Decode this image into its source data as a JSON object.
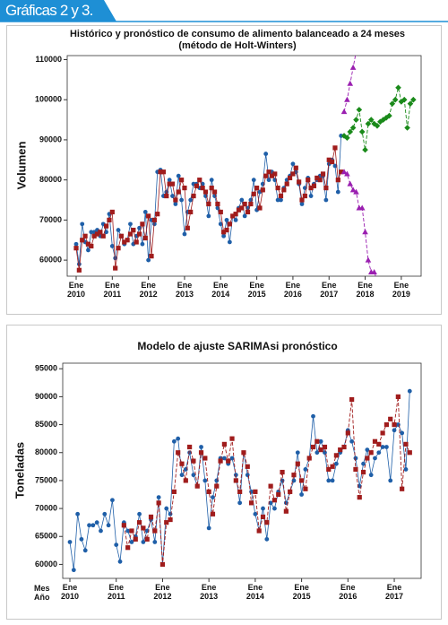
{
  "header": "Gráficas 2 y 3.",
  "chart_data": [
    {
      "type": "line",
      "title": "Histórico y pronóstico de consumo de alimento balanceado a 24 meses\n(método de Holt-Winters)",
      "ylabel": "Volumen",
      "categories": [
        "Ene\n2010",
        null,
        null,
        null,
        null,
        null,
        null,
        null,
        null,
        null,
        null,
        null,
        "Ene\n2011",
        null,
        null,
        null,
        null,
        null,
        null,
        null,
        null,
        null,
        null,
        null,
        "Ene\n2012",
        null,
        null,
        null,
        null,
        null,
        null,
        null,
        null,
        null,
        null,
        null,
        "Ene\n2013",
        null,
        null,
        null,
        null,
        null,
        null,
        null,
        null,
        null,
        null,
        null,
        "Ene\n2014",
        null,
        null,
        null,
        null,
        null,
        null,
        null,
        null,
        null,
        null,
        null,
        "Ene\n2015",
        null,
        null,
        null,
        null,
        null,
        null,
        null,
        null,
        null,
        null,
        null,
        "Ene\n2016",
        null,
        null,
        null,
        null,
        null,
        null,
        null,
        null,
        null,
        null,
        null,
        "Ene\n2017",
        null,
        null,
        null,
        null,
        null,
        null,
        null,
        null,
        null,
        null,
        null,
        "Ene\n2018",
        null,
        null,
        null,
        null,
        null,
        null,
        null,
        null,
        null,
        null,
        null,
        "Ene\n2019",
        null,
        null,
        null,
        null
      ],
      "ylim": [
        56000,
        111000
      ],
      "yticks": [
        60000,
        70000,
        80000,
        90000,
        100000,
        110000
      ],
      "series": [
        {
          "color": "#1f5fa8",
          "marker": "circle",
          "dash": false,
          "values": [
            64000,
            59000,
            69000,
            64500,
            62500,
            67000,
            67000,
            67500,
            66000,
            69000,
            67000,
            71500,
            63500,
            60500,
            67500,
            66000,
            64000,
            65000,
            69000,
            64000,
            66000,
            68000,
            64000,
            72000,
            60000,
            70000,
            69000,
            82000,
            82500,
            76000,
            77000,
            80000,
            76000,
            74000,
            81000,
            75000,
            66500,
            72000,
            75000,
            79000,
            79000,
            78000,
            79000,
            76000,
            71000,
            80000,
            76000,
            73000,
            69000,
            66000,
            70000,
            64500,
            71000,
            70000,
            73000,
            75000,
            71000,
            73000,
            75000,
            80000,
            72500,
            77000,
            79000,
            86500,
            80000,
            82000,
            80000,
            75000,
            75000,
            78000,
            80000,
            81000,
            84000,
            82000,
            79000,
            74000,
            78000,
            80500,
            76000,
            79000,
            80000,
            81000,
            81000,
            75000,
            84000,
            85000,
            83500,
            77000,
            91000,
            null,
            null,
            null,
            null,
            null,
            null,
            null,
            null,
            null,
            null,
            null,
            null,
            null,
            null,
            null,
            null,
            null,
            null,
            null,
            null,
            null,
            null,
            null,
            null
          ]
        },
        {
          "color": "#a01c1c",
          "marker": "square",
          "dash": false,
          "values": [
            63000,
            57500,
            65000,
            66000,
            64000,
            63500,
            66000,
            66500,
            67000,
            66000,
            68500,
            70000,
            72000,
            58000,
            63000,
            66000,
            64500,
            65000,
            66500,
            67500,
            64500,
            66500,
            69000,
            65500,
            71000,
            61000,
            70000,
            71500,
            82000,
            82000,
            76000,
            79000,
            79000,
            75000,
            77000,
            80000,
            78000,
            68000,
            72000,
            76000,
            78500,
            80000,
            78000,
            77000,
            74000,
            78000,
            77000,
            74000,
            72000,
            67000,
            67500,
            69000,
            71000,
            71500,
            72500,
            73000,
            74000,
            72000,
            74000,
            76500,
            78000,
            73000,
            77500,
            81000,
            82000,
            81000,
            81500,
            78000,
            76000,
            77500,
            79000,
            80500,
            81500,
            83000,
            79500,
            75000,
            76000,
            80000,
            78000,
            78500,
            80500,
            80000,
            81500,
            78000,
            85000,
            84500,
            88000,
            80000,
            82000,
            null,
            null,
            null,
            null,
            null,
            null,
            null,
            null,
            null,
            null,
            null,
            null,
            null,
            null,
            null,
            null,
            null,
            null,
            null,
            null,
            null,
            null,
            null,
            null
          ]
        },
        {
          "color": "#1a8a1a",
          "marker": "diamond",
          "dash": true,
          "values": [
            null,
            null,
            null,
            null,
            null,
            null,
            null,
            null,
            null,
            null,
            null,
            null,
            null,
            null,
            null,
            null,
            null,
            null,
            null,
            null,
            null,
            null,
            null,
            null,
            null,
            null,
            null,
            null,
            null,
            null,
            null,
            null,
            null,
            null,
            null,
            null,
            null,
            null,
            null,
            null,
            null,
            null,
            null,
            null,
            null,
            null,
            null,
            null,
            null,
            null,
            null,
            null,
            null,
            null,
            null,
            null,
            null,
            null,
            null,
            null,
            null,
            null,
            null,
            null,
            null,
            null,
            null,
            null,
            null,
            null,
            null,
            null,
            null,
            null,
            null,
            null,
            null,
            null,
            null,
            null,
            null,
            null,
            null,
            null,
            null,
            null,
            null,
            null,
            null,
            91000,
            90500,
            92000,
            93000,
            95000,
            97500,
            92000,
            87500,
            94000,
            95000,
            94000,
            93500,
            94500,
            95000,
            95500,
            96000,
            99000,
            100000,
            103000,
            99500,
            100000,
            93000,
            99000,
            100000
          ]
        },
        {
          "color": "#9a1fb0",
          "marker": "triangle",
          "dash": true,
          "values": [
            null,
            null,
            null,
            null,
            null,
            null,
            null,
            null,
            null,
            null,
            null,
            null,
            null,
            null,
            null,
            null,
            null,
            null,
            null,
            null,
            null,
            null,
            null,
            null,
            null,
            null,
            null,
            null,
            null,
            null,
            null,
            null,
            null,
            null,
            null,
            null,
            null,
            null,
            null,
            null,
            null,
            null,
            null,
            null,
            null,
            null,
            null,
            null,
            null,
            null,
            null,
            null,
            null,
            null,
            null,
            null,
            null,
            null,
            null,
            null,
            null,
            null,
            null,
            null,
            null,
            null,
            null,
            null,
            null,
            null,
            null,
            null,
            null,
            null,
            null,
            null,
            null,
            null,
            null,
            null,
            null,
            null,
            null,
            null,
            null,
            null,
            null,
            null,
            null,
            97000,
            100000,
            104000,
            108000,
            112000,
            null,
            null,
            null,
            null,
            null,
            null,
            null,
            null,
            null,
            null,
            null,
            null,
            null,
            null,
            null,
            null,
            null,
            null,
            null
          ]
        },
        {
          "color": "#9a1fb0",
          "marker": "triangle",
          "dash": true,
          "values": [
            null,
            null,
            null,
            null,
            null,
            null,
            null,
            null,
            null,
            null,
            null,
            null,
            null,
            null,
            null,
            null,
            null,
            null,
            null,
            null,
            null,
            null,
            null,
            null,
            null,
            null,
            null,
            null,
            null,
            null,
            null,
            null,
            null,
            null,
            null,
            null,
            null,
            null,
            null,
            null,
            null,
            null,
            null,
            null,
            null,
            null,
            null,
            null,
            null,
            null,
            null,
            null,
            null,
            null,
            null,
            null,
            null,
            null,
            null,
            null,
            null,
            null,
            null,
            null,
            null,
            null,
            null,
            null,
            null,
            null,
            null,
            null,
            null,
            null,
            null,
            null,
            null,
            null,
            null,
            null,
            null,
            null,
            null,
            null,
            null,
            null,
            null,
            null,
            null,
            82000,
            81500,
            79000,
            77500,
            77000,
            73000,
            73000,
            67000,
            60000,
            57000,
            57000,
            55000,
            null,
            null,
            null,
            null,
            null,
            null,
            null,
            null,
            null,
            null,
            null,
            null
          ]
        }
      ]
    },
    {
      "type": "line",
      "title": "Modelo de ajuste SARIMAsi pronóstico",
      "ylabel": "Toneladas",
      "xlabel": "Mes\nAño",
      "categories": [
        "Ene\n2010",
        null,
        null,
        null,
        null,
        null,
        null,
        null,
        null,
        null,
        null,
        null,
        "Ene\n2011",
        null,
        null,
        null,
        null,
        null,
        null,
        null,
        null,
        null,
        null,
        null,
        "Ene\n2012",
        null,
        null,
        null,
        null,
        null,
        null,
        null,
        null,
        null,
        null,
        null,
        "Ene\n2013",
        null,
        null,
        null,
        null,
        null,
        null,
        null,
        null,
        null,
        null,
        null,
        "Ene\n2014",
        null,
        null,
        null,
        null,
        null,
        null,
        null,
        null,
        null,
        null,
        null,
        "Ene\n2015",
        null,
        null,
        null,
        null,
        null,
        null,
        null,
        null,
        null,
        null,
        null,
        "Ene\n2016",
        null,
        null,
        null,
        null,
        null,
        null,
        null,
        null,
        null,
        null,
        null,
        "Ene\n2017",
        null,
        null,
        null,
        null
      ],
      "ylim": [
        57500,
        96000
      ],
      "yticks": [
        60000,
        65000,
        70000,
        75000,
        80000,
        85000,
        90000,
        95000
      ],
      "series": [
        {
          "color": "#1f5fa8",
          "marker": "circle",
          "dash": false,
          "values": [
            64000,
            59000,
            69000,
            64500,
            62500,
            67000,
            67000,
            67500,
            66000,
            69000,
            67000,
            71500,
            63500,
            60500,
            67500,
            66000,
            64000,
            65000,
            69000,
            64000,
            66000,
            68000,
            64000,
            72000,
            60000,
            70000,
            69000,
            82000,
            82500,
            76000,
            77000,
            80000,
            76000,
            74000,
            81000,
            75000,
            66500,
            72000,
            75000,
            79000,
            79000,
            78000,
            79000,
            76000,
            71000,
            80000,
            76000,
            73000,
            69000,
            66000,
            70000,
            64500,
            71000,
            70000,
            73000,
            75000,
            71000,
            73000,
            75000,
            80000,
            72500,
            77000,
            79000,
            86500,
            80000,
            82000,
            80000,
            75000,
            75000,
            78000,
            80000,
            81000,
            84000,
            82000,
            79000,
            74000,
            78000,
            80500,
            76000,
            79000,
            80000,
            81000,
            81000,
            75000,
            84000,
            85000,
            83500,
            77000,
            91000
          ]
        },
        {
          "color": "#a01c1c",
          "marker": "square",
          "dash": true,
          "values": [
            null,
            null,
            null,
            null,
            null,
            null,
            null,
            null,
            null,
            null,
            null,
            null,
            null,
            null,
            67000,
            63000,
            66000,
            64500,
            67500,
            66500,
            64500,
            68500,
            66000,
            71000,
            60000,
            67500,
            68000,
            73000,
            80000,
            78000,
            75000,
            81000,
            78500,
            74000,
            80000,
            79000,
            73000,
            69000,
            74000,
            78500,
            81500,
            78500,
            82500,
            75000,
            73000,
            80000,
            77500,
            71000,
            73000,
            66000,
            68500,
            67500,
            74000,
            71500,
            72500,
            76500,
            69500,
            73000,
            76000,
            78000,
            75000,
            73500,
            79000,
            81000,
            82000,
            80500,
            81000,
            77000,
            77500,
            79500,
            80500,
            81000,
            83500,
            89500,
            77000,
            72000,
            76500,
            79000,
            80000,
            82000,
            81500,
            83500,
            85000,
            86000,
            85000,
            90000,
            73500,
            81500,
            80000
          ]
        }
      ]
    }
  ]
}
